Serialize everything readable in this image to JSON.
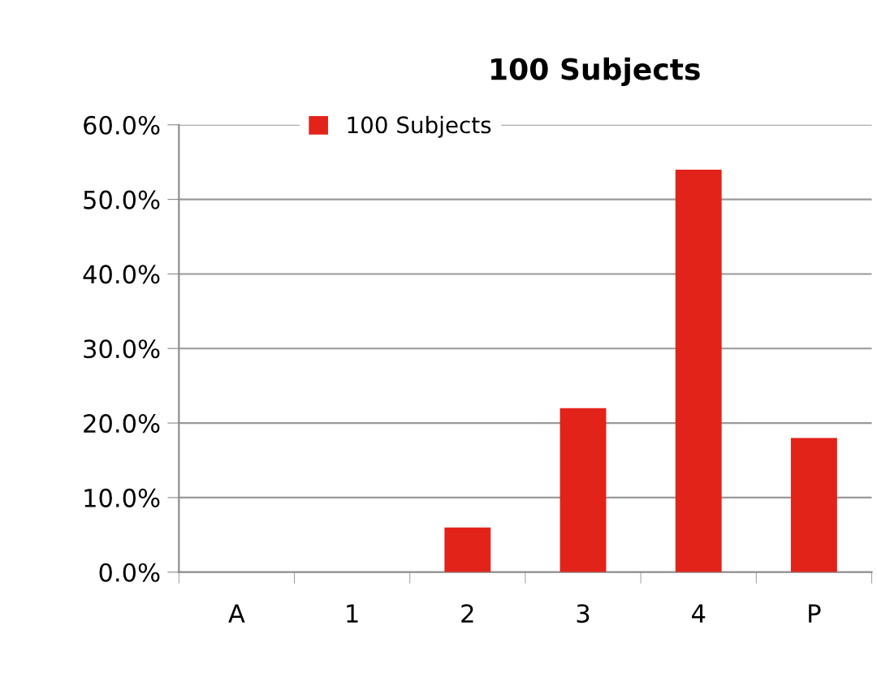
{
  "chart_data": {
    "type": "bar",
    "title": "100 Subjects",
    "categories": [
      "A",
      "1",
      "2",
      "3",
      "4",
      "P"
    ],
    "series": [
      {
        "name": "100 Subjects",
        "color": "#e2231a",
        "values": [
          0,
          0,
          6,
          22,
          54,
          18
        ]
      }
    ],
    "ylim": [
      0,
      60
    ],
    "yticks": [
      {
        "value": 0,
        "label": "0.0%"
      },
      {
        "value": 10,
        "label": "10.0%"
      },
      {
        "value": 20,
        "label": "20.0%"
      },
      {
        "value": 30,
        "label": "30.0%"
      },
      {
        "value": 40,
        "label": "40.0%"
      },
      {
        "value": 50,
        "label": "50.0%"
      },
      {
        "value": 60,
        "label": "60.0%"
      }
    ],
    "grid": "y",
    "legend": "top"
  }
}
